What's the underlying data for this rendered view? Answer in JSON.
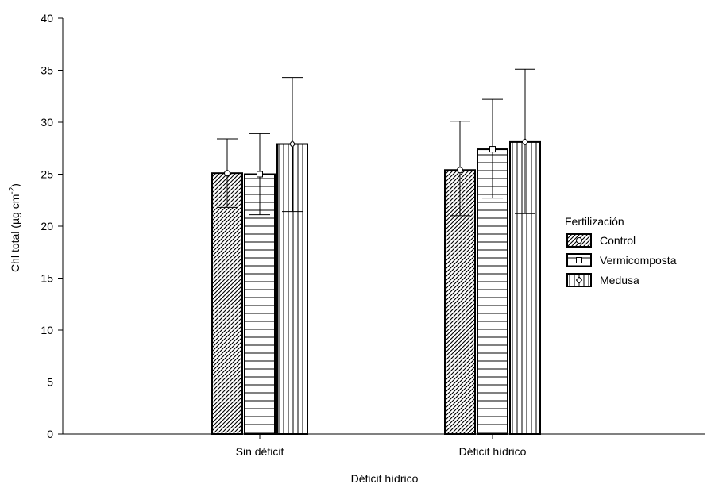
{
  "chart_data": {
    "type": "bar",
    "title": "",
    "xlabel": "Déficit hídrico",
    "ylabel": "Chl total  (µg cm",
    "ylabel_sup": "-2",
    "ylabel_close": ")",
    "ylim": [
      0,
      40
    ],
    "yticks": [
      0,
      5,
      10,
      15,
      20,
      25,
      30,
      35,
      40
    ],
    "grid": false,
    "legend_position": "right",
    "legend_title": "Fertilización",
    "categories": [
      "Sin déficit",
      "Déficit hídrico"
    ],
    "series": [
      {
        "name": "Control",
        "values": [
          25.1,
          25.4
        ],
        "error_low": [
          21.8,
          21.0
        ],
        "error_high": [
          28.4,
          30.1
        ],
        "pattern": "diagonal",
        "marker": "circle"
      },
      {
        "name": "Vermicomposta",
        "values": [
          25.0,
          27.4
        ],
        "error_low": [
          21.1,
          22.7
        ],
        "error_high": [
          28.9,
          32.2
        ],
        "pattern": "horizontal",
        "marker": "square"
      },
      {
        "name": "Medusa",
        "values": [
          27.9,
          28.1
        ],
        "error_low": [
          21.4,
          21.2
        ],
        "error_high": [
          34.3,
          35.1
        ],
        "pattern": "vertical",
        "marker": "diamond"
      }
    ]
  }
}
